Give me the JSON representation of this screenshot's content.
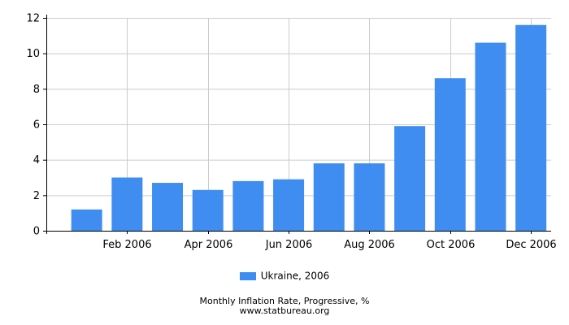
{
  "chart_data": {
    "type": "bar",
    "categories": [
      "Jan 2006",
      "Feb 2006",
      "Mar 2006",
      "Apr 2006",
      "May 2006",
      "Jun 2006",
      "Jul 2006",
      "Aug 2006",
      "Sep 2006",
      "Oct 2006",
      "Nov 2006",
      "Dec 2006"
    ],
    "x_tick_labels": [
      "",
      "Feb 2006",
      "",
      "Apr 2006",
      "",
      "Jun 2006",
      "",
      "Aug 2006",
      "",
      "Oct 2006",
      "",
      "Dec 2006"
    ],
    "series": [
      {
        "name": "Ukraine, 2006",
        "values": [
          1.2,
          3.0,
          2.7,
          2.3,
          2.8,
          2.9,
          3.8,
          3.8,
          5.9,
          8.6,
          10.6,
          11.6
        ]
      }
    ],
    "title": "Monthly Inflation Rate, Progressive, %",
    "source": "www.statbureau.org",
    "ylim": [
      0,
      12
    ],
    "y_ticks": [
      0,
      2,
      4,
      6,
      8,
      10,
      12
    ],
    "grid": true,
    "legend_position": "bottom",
    "colors": {
      "bar": "#3f8df0",
      "grid": "#cccccc",
      "axis": "#000000"
    }
  }
}
